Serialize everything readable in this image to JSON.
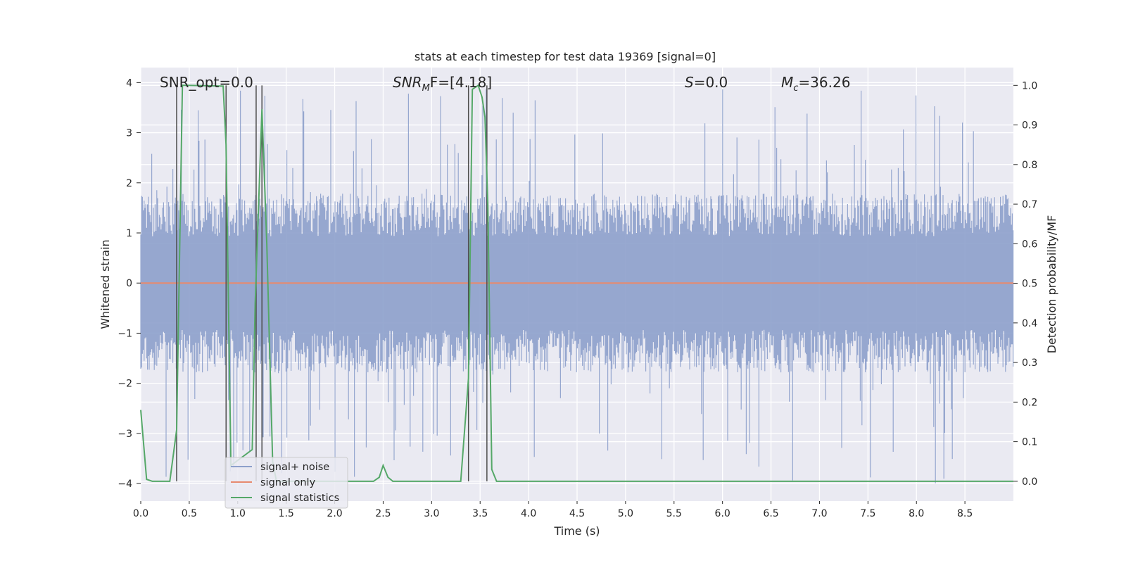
{
  "chart_data": {
    "type": "line",
    "title": "stats at each timestep for test data 19369 [signal=0]",
    "xlabel": "Time (s)",
    "ylabel_left": "Whitened strain",
    "ylabel_right": "Detection probability/MF",
    "xlim": [
      0,
      9
    ],
    "ylim_left": [
      -4.35,
      4.3
    ],
    "ylim_right": [
      -0.05,
      1.045
    ],
    "x_ticks": [
      0.0,
      0.5,
      1.0,
      1.5,
      2.0,
      2.5,
      3.0,
      3.5,
      4.0,
      4.5,
      5.0,
      5.5,
      6.0,
      6.5,
      7.0,
      7.5,
      8.0,
      8.5
    ],
    "x_tick_labels": [
      "0.0",
      "0.5",
      "1.0",
      "1.5",
      "2.0",
      "2.5",
      "3.0",
      "3.5",
      "4.0",
      "4.5",
      "5.0",
      "5.5",
      "6.0",
      "6.5",
      "7.0",
      "7.5",
      "8.0",
      "8.5"
    ],
    "y_ticks_left": [
      4,
      3,
      2,
      1,
      0,
      -1,
      -2,
      -3,
      -4
    ],
    "y_tick_labels_left": [
      "4",
      "3",
      "2",
      "1",
      "0",
      "−1",
      "−2",
      "−3",
      "−4"
    ],
    "y_ticks_right": [
      1.0,
      0.9,
      0.8,
      0.7,
      0.6,
      0.5,
      0.4,
      0.3,
      0.2,
      0.1,
      0.0
    ],
    "y_tick_labels_right": [
      "1.0",
      "0.9",
      "0.8",
      "0.7",
      "0.6",
      "0.5",
      "0.4",
      "0.3",
      "0.2",
      "0.1",
      "0.0"
    ],
    "grid": true,
    "legend": {
      "location": "lower-left",
      "entries": [
        {
          "label": "signal+ noise",
          "color": "#8da0cb"
        },
        {
          "label": "signal only",
          "color": "#e78a6e"
        },
        {
          "label": "signal statistics",
          "color": "#55a868"
        }
      ]
    },
    "annotations": {
      "snr_opt": "SNR_opt=0.0",
      "snr_mf_label": "SNR",
      "snr_mf_sub": "M",
      "snr_mf_rest": "F=[4.18]",
      "s_label": "S",
      "s_rest": "=0.0",
      "mc_label": "M",
      "mc_sub": "c",
      "mc_rest": "=36.26"
    },
    "colors": {
      "noise": "#8da0cb",
      "signal": "#e78a6e",
      "statistics": "#55a868",
      "vlines": "#4d4d4d",
      "axes_bg": "#eaeaf2",
      "grid": "#ffffff"
    },
    "series": [
      {
        "name": "signal+ noise",
        "axis": "left",
        "style": "noise-band",
        "envelope_typical": [
          -1.7,
          1.7
        ],
        "extremes_max": 3.9,
        "extremes_min": -4.0
      },
      {
        "name": "signal only",
        "axis": "left",
        "x": [
          0,
          9
        ],
        "y": [
          0,
          0
        ]
      },
      {
        "name": "signal statistics",
        "axis": "right",
        "x": [
          0.0,
          0.06,
          0.12,
          0.3,
          0.37,
          0.43,
          0.48,
          0.85,
          0.88,
          0.93,
          1.15,
          1.18,
          1.25,
          1.3,
          1.36,
          1.4,
          2.4,
          2.46,
          2.5,
          2.55,
          2.6,
          3.3,
          3.38,
          3.42,
          3.48,
          3.52,
          3.55,
          3.58,
          3.62,
          3.67,
          9.0
        ],
        "y": [
          0.18,
          0.005,
          0.0,
          0.0,
          0.13,
          1.0,
          1.0,
          0.998,
          0.85,
          0.04,
          0.08,
          0.45,
          0.94,
          0.6,
          0.05,
          0.0,
          0.0,
          0.01,
          0.04,
          0.01,
          0.0,
          0.0,
          0.26,
          0.99,
          1.0,
          0.97,
          0.92,
          0.7,
          0.03,
          0.0,
          0.0
        ]
      }
    ],
    "vertical_lines_x": [
      0.37,
      0.88,
      1.19,
      1.25,
      3.38,
      3.57
    ]
  }
}
